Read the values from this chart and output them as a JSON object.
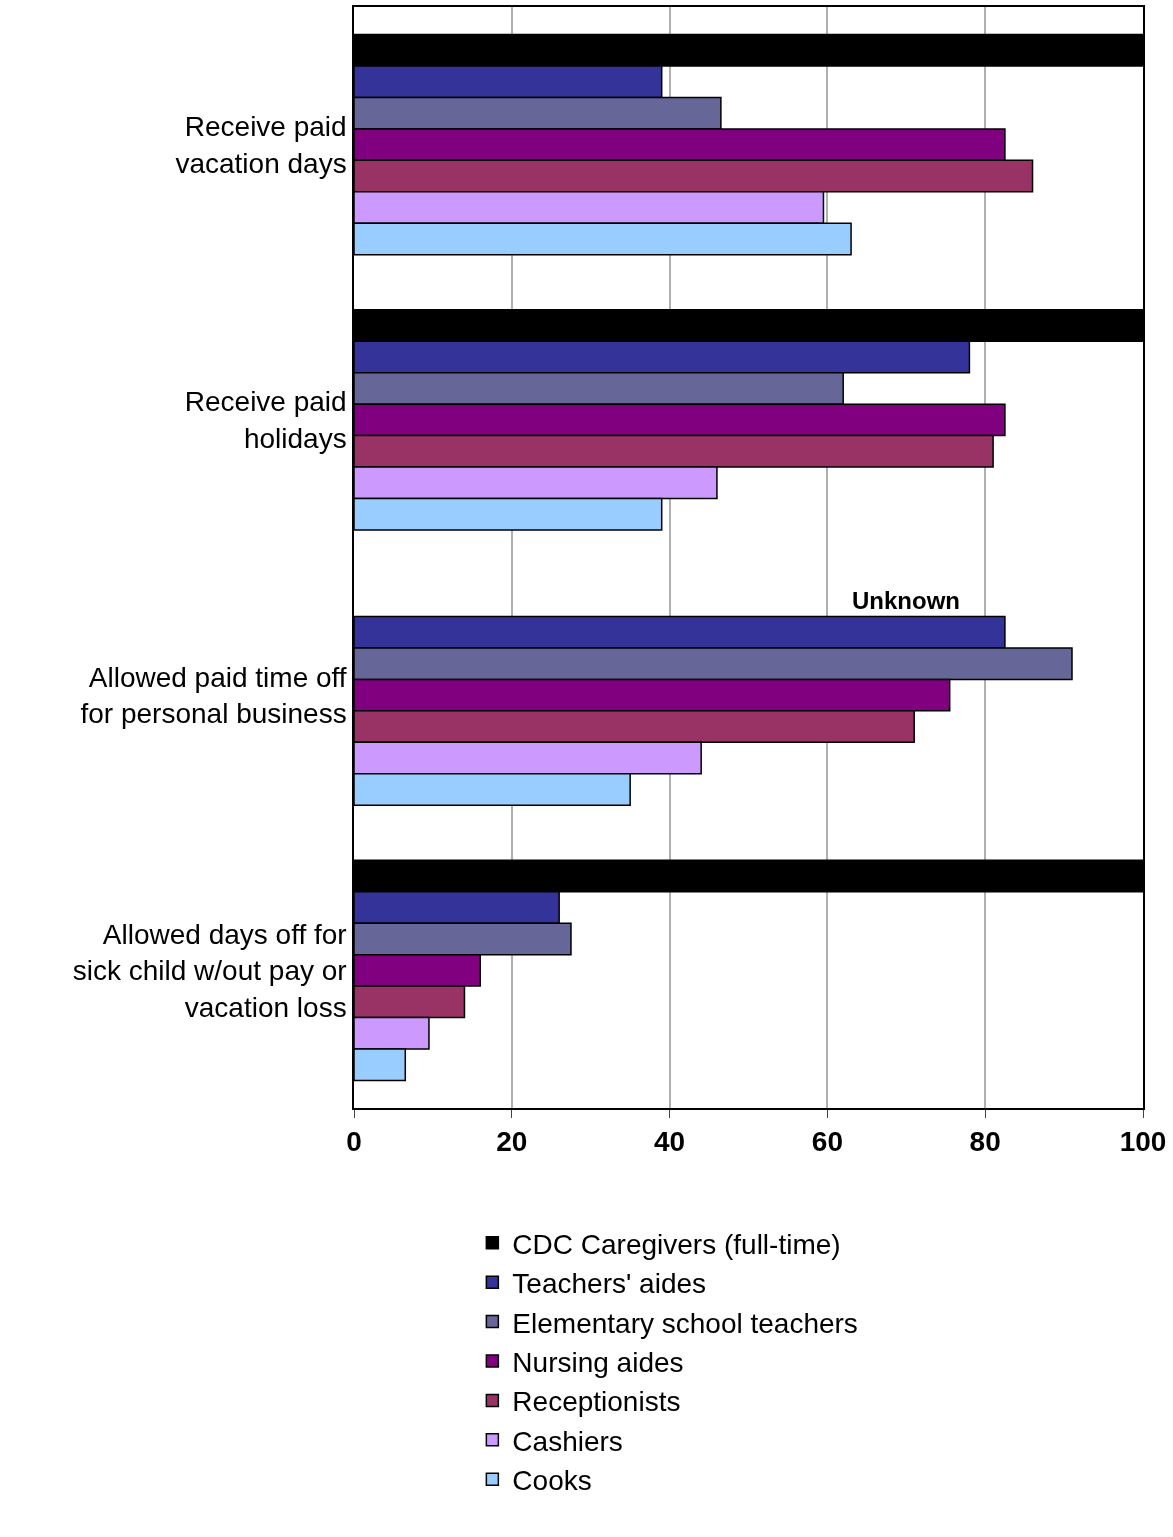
{
  "chart_data": {
    "type": "bar",
    "orientation": "horizontal",
    "categories": [
      "Receive paid\nvacation days",
      "Receive paid\nholidays",
      "Allowed paid time off\nfor personal business",
      "Allowed days off for\nsick child w/out pay or\nvacation loss"
    ],
    "series": [
      {
        "name": "CDC Caregivers (full-time)",
        "color": "#000000",
        "values": [
          100,
          100,
          null,
          100
        ]
      },
      {
        "name": "Teachers' aides",
        "color": "#333399",
        "values": [
          39,
          78,
          82.5,
          26
        ]
      },
      {
        "name": "Elementary school teachers",
        "color": "#666699",
        "values": [
          46.5,
          62,
          91,
          27.5
        ]
      },
      {
        "name": "Nursing aides",
        "color": "#800080",
        "values": [
          82.5,
          82.5,
          75.5,
          16
        ]
      },
      {
        "name": "Receptionists",
        "color": "#993366",
        "values": [
          86,
          81,
          71,
          14
        ]
      },
      {
        "name": "Cashiers",
        "color": "#cc99ff",
        "values": [
          59.5,
          46,
          44,
          9.5
        ]
      },
      {
        "name": "Cooks",
        "color": "#99ccff",
        "values": [
          63,
          39,
          35,
          6.5
        ]
      }
    ],
    "annotations": [
      "Unknown"
    ],
    "xlim": [
      0,
      100
    ],
    "xticks": [
      0,
      20,
      40,
      60,
      80,
      100
    ],
    "grid": "x",
    "legend": "bottom"
  }
}
